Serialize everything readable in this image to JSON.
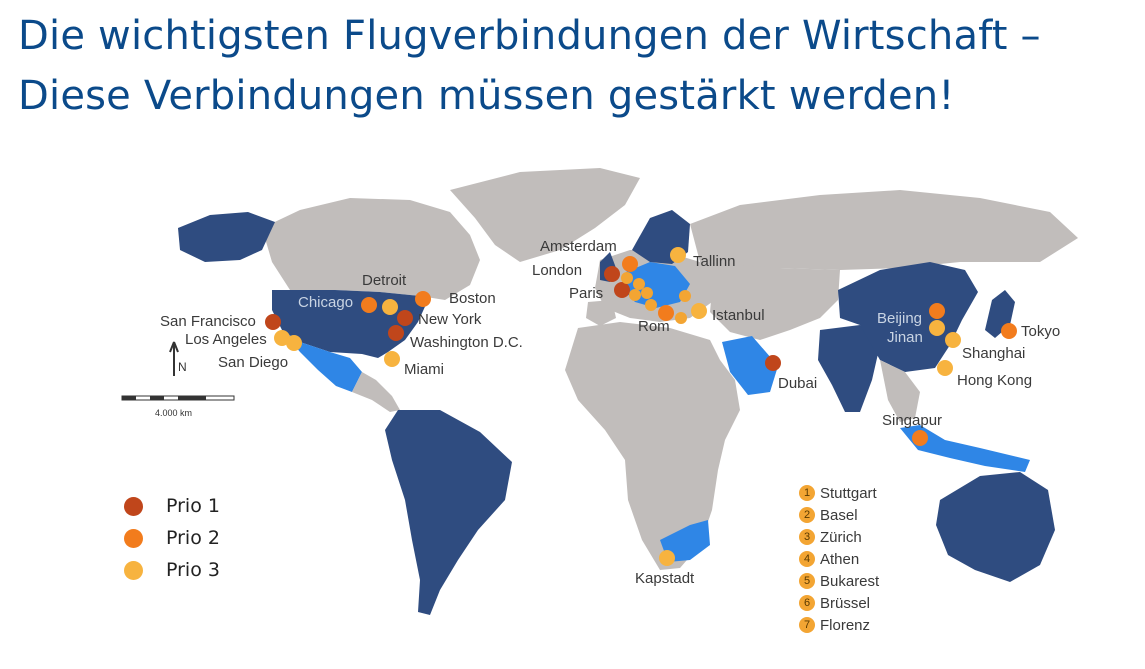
{
  "title": {
    "line1": "Die wichtigsten Flugverbindungen der Wirtschaft –",
    "line2": "Diese Verbindungen müssen gestärkt werden!"
  },
  "colors": {
    "title": "#0b4a8a",
    "land": "#c1bdbb",
    "dark_blue": "#2f4c80",
    "light_blue": "#2f86e6",
    "prio1": "#c0461b",
    "prio2": "#f27c1d",
    "prio3": "#f7b33f"
  },
  "legend": [
    {
      "label": "Prio 1",
      "color": "#c0461b"
    },
    {
      "label": "Prio 2",
      "color": "#f27c1d"
    },
    {
      "label": "Prio 3",
      "color": "#f7b33f"
    }
  ],
  "cities": {
    "san_francisco": "San Francisco",
    "los_angeles": "Los Angeles",
    "san_diego": "San Diego",
    "chicago": "Chicago",
    "detroit": "Detroit",
    "boston": "Boston",
    "new_york": "New York",
    "washington": "Washington D.C.",
    "miami": "Miami",
    "amsterdam": "Amsterdam",
    "london": "London",
    "paris": "Paris",
    "rom": "Rom",
    "tallinn": "Tallinn",
    "istanbul": "Istanbul",
    "dubai": "Dubai",
    "kapstadt": "Kapstadt",
    "beijing": "Beijing",
    "jinan": "Jinan",
    "shanghai": "Shanghai",
    "hong_kong": "Hong Kong",
    "tokyo": "Tokyo",
    "singapur": "Singapur"
  },
  "numbered_cities": [
    {
      "num": "1",
      "label": "Stuttgart"
    },
    {
      "num": "2",
      "label": "Basel"
    },
    {
      "num": "3",
      "label": "Zürich"
    },
    {
      "num": "4",
      "label": "Athen"
    },
    {
      "num": "5",
      "label": "Bukarest"
    },
    {
      "num": "6",
      "label": "Brüssel"
    },
    {
      "num": "7",
      "label": "Florenz"
    }
  ],
  "scale": {
    "label": "4.000 km"
  },
  "north": {
    "label": "N"
  }
}
